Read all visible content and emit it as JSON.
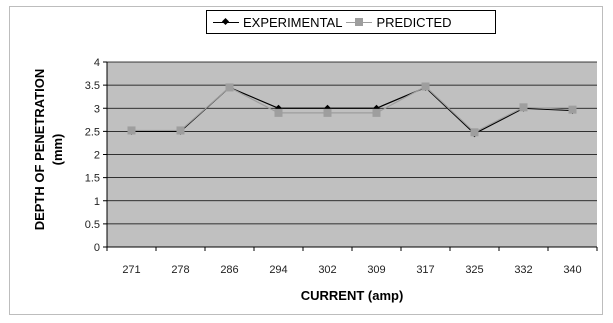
{
  "chart_data": {
    "type": "line",
    "title": "",
    "xlabel": "CURRENT (amp)",
    "ylabel_line1": "DEPTH OF PENETRATION",
    "ylabel_line2": "(mm)",
    "categories": [
      "271",
      "278",
      "286",
      "294",
      "302",
      "309",
      "317",
      "325",
      "332",
      "340"
    ],
    "ylim": [
      0,
      4
    ],
    "yticks": [
      "0",
      "0.5",
      "1",
      "1.5",
      "2",
      "2.5",
      "3",
      "3.5",
      "4"
    ],
    "ytick_values": [
      0,
      0.5,
      1,
      1.5,
      2,
      2.5,
      3,
      3.5,
      4
    ],
    "grid": true,
    "legend_position": "top-center",
    "plot_background": "#c0c0c0",
    "series": [
      {
        "name": "EXPERIMENTAL",
        "color": "#000000",
        "marker": "diamond",
        "values": [
          2.5,
          2.5,
          3.45,
          3.0,
          3.0,
          3.0,
          3.45,
          2.45,
          3.0,
          2.95
        ]
      },
      {
        "name": "PREDICTED",
        "color": "#9e9e9e",
        "marker": "square",
        "values": [
          2.52,
          2.52,
          3.45,
          2.9,
          2.9,
          2.9,
          3.47,
          2.48,
          3.02,
          2.97
        ]
      }
    ]
  }
}
